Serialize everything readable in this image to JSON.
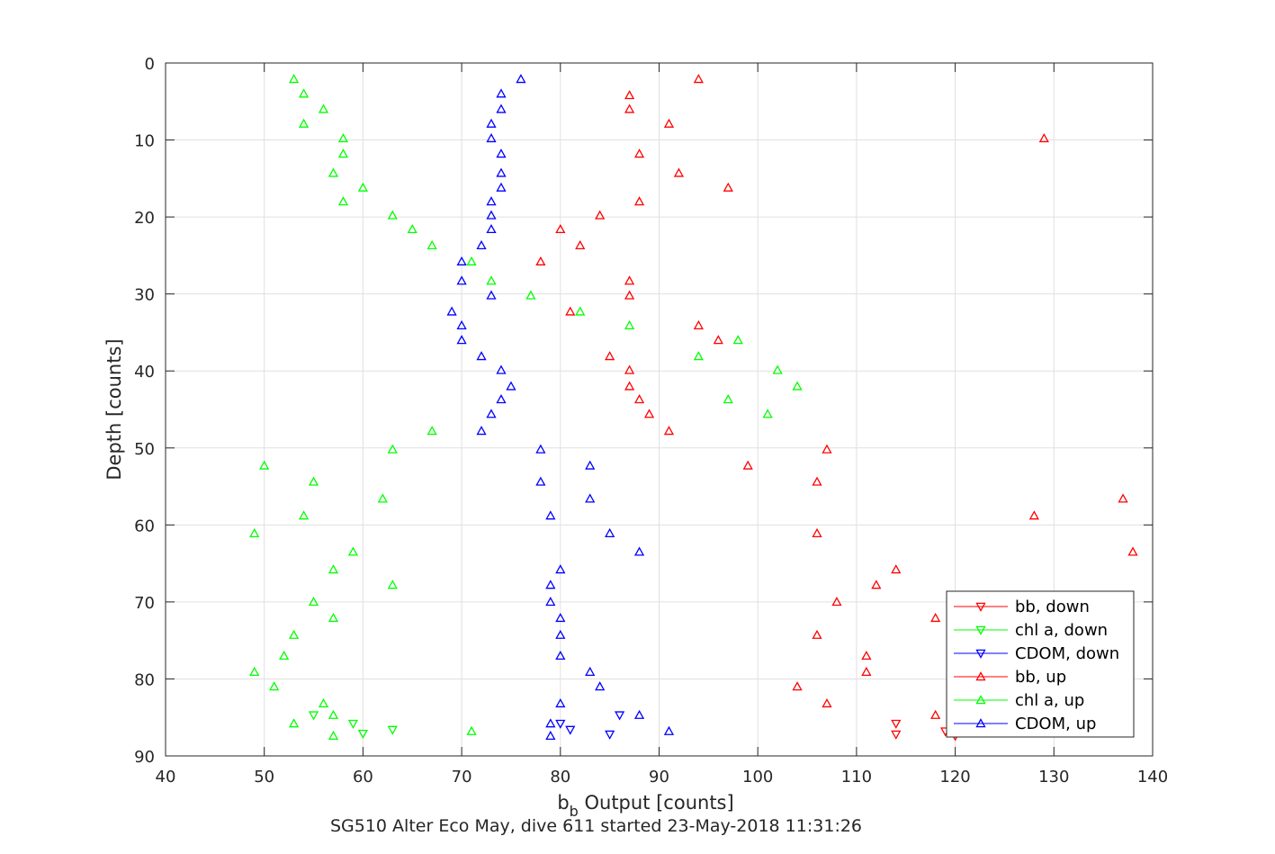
{
  "chart_data": {
    "type": "scatter",
    "xlabel_base": "b",
    "xlabel_sub": "b",
    "xlabel_rest": " Output [counts]",
    "ylabel": "Depth [counts]",
    "caption": "SG510 Alter Eco May, dive 611 started 23-May-2018 11:31:26",
    "xlim": [
      40,
      140
    ],
    "ylim": [
      0,
      90
    ],
    "y_reversed": true,
    "grid": true,
    "legend_position": "bottom-right",
    "x_ticks": [
      "40",
      "50",
      "60",
      "70",
      "80",
      "90",
      "100",
      "110",
      "120",
      "130",
      "140"
    ],
    "y_ticks": [
      "0",
      "10",
      "20",
      "30",
      "40",
      "50",
      "60",
      "70",
      "80",
      "90"
    ],
    "series": [
      {
        "name": "bb, down",
        "color": "#ff0000",
        "marker": "triangle-down",
        "points": [
          [
            114,
            85.8
          ],
          [
            114,
            87.2
          ],
          [
            119,
            86.8
          ],
          [
            120,
            87.4
          ]
        ]
      },
      {
        "name": "chl a, down",
        "color": "#00ff00",
        "marker": "triangle-down",
        "points": [
          [
            55,
            84.7
          ],
          [
            59,
            85.8
          ],
          [
            60,
            87.1
          ],
          [
            63,
            86.6
          ]
        ]
      },
      {
        "name": "CDOM, down",
        "color": "#0000ff",
        "marker": "triangle-down",
        "points": [
          [
            80,
            85.8
          ],
          [
            81,
            86.6
          ],
          [
            85,
            87.2
          ],
          [
            86,
            84.7
          ]
        ]
      },
      {
        "name": "bb, up",
        "color": "#ff0000",
        "marker": "triangle-up",
        "points": [
          [
            94,
            2.1
          ],
          [
            87,
            4.2
          ],
          [
            87,
            6.0
          ],
          [
            91,
            7.9
          ],
          [
            129,
            9.8
          ],
          [
            88,
            11.8
          ],
          [
            92,
            14.3
          ],
          [
            97,
            16.2
          ],
          [
            88,
            18.0
          ],
          [
            84,
            19.8
          ],
          [
            80,
            21.6
          ],
          [
            82,
            23.7
          ],
          [
            78,
            25.8
          ],
          [
            87,
            28.3
          ],
          [
            87,
            30.2
          ],
          [
            81,
            32.3
          ],
          [
            94,
            34.1
          ],
          [
            96,
            36.0
          ],
          [
            85,
            38.1
          ],
          [
            87,
            39.9
          ],
          [
            87,
            42.0
          ],
          [
            88,
            43.7
          ],
          [
            89,
            45.6
          ],
          [
            91,
            47.8
          ],
          [
            107,
            50.2
          ],
          [
            99,
            52.3
          ],
          [
            106,
            54.4
          ],
          [
            137,
            56.6
          ],
          [
            128,
            58.8
          ],
          [
            106,
            61.1
          ],
          [
            138,
            63.5
          ],
          [
            114,
            65.8
          ],
          [
            112,
            67.8
          ],
          [
            108,
            70.0
          ],
          [
            118,
            72.1
          ],
          [
            106,
            74.3
          ],
          [
            111,
            77.0
          ],
          [
            111,
            79.1
          ],
          [
            104,
            81.0
          ],
          [
            107,
            83.2
          ],
          [
            118,
            84.7
          ]
        ]
      },
      {
        "name": "chl a, up",
        "color": "#00ff00",
        "marker": "triangle-up",
        "points": [
          [
            53,
            2.1
          ],
          [
            54,
            4.0
          ],
          [
            56,
            6.0
          ],
          [
            54,
            7.9
          ],
          [
            58,
            9.8
          ],
          [
            58,
            11.8
          ],
          [
            57,
            14.3
          ],
          [
            60,
            16.2
          ],
          [
            58,
            18.0
          ],
          [
            63,
            19.8
          ],
          [
            65,
            21.6
          ],
          [
            67,
            23.7
          ],
          [
            71,
            25.8
          ],
          [
            73,
            28.3
          ],
          [
            77,
            30.2
          ],
          [
            82,
            32.3
          ],
          [
            87,
            34.1
          ],
          [
            98,
            36.0
          ],
          [
            94,
            38.1
          ],
          [
            102,
            39.9
          ],
          [
            104,
            42.0
          ],
          [
            97,
            43.7
          ],
          [
            101,
            45.6
          ],
          [
            67,
            47.8
          ],
          [
            63,
            50.2
          ],
          [
            50,
            52.3
          ],
          [
            55,
            54.4
          ],
          [
            62,
            56.6
          ],
          [
            54,
            58.8
          ],
          [
            49,
            61.1
          ],
          [
            59,
            63.5
          ],
          [
            57,
            65.8
          ],
          [
            63,
            67.8
          ],
          [
            55,
            70.0
          ],
          [
            57,
            72.1
          ],
          [
            53,
            74.3
          ],
          [
            52,
            77.0
          ],
          [
            49,
            79.1
          ],
          [
            51,
            81.0
          ],
          [
            56,
            83.2
          ],
          [
            57,
            84.7
          ],
          [
            53,
            85.8
          ],
          [
            71,
            86.8
          ],
          [
            57,
            87.4
          ]
        ]
      },
      {
        "name": "CDOM, up",
        "color": "#0000ff",
        "marker": "triangle-up",
        "points": [
          [
            76,
            2.1
          ],
          [
            74,
            4.0
          ],
          [
            74,
            6.0
          ],
          [
            73,
            7.9
          ],
          [
            73,
            9.8
          ],
          [
            74,
            11.8
          ],
          [
            74,
            14.3
          ],
          [
            74,
            16.2
          ],
          [
            73,
            18.0
          ],
          [
            73,
            19.8
          ],
          [
            73,
            21.6
          ],
          [
            72,
            23.7
          ],
          [
            70,
            25.8
          ],
          [
            70,
            28.3
          ],
          [
            73,
            30.2
          ],
          [
            69,
            32.3
          ],
          [
            70,
            34.1
          ],
          [
            70,
            36.0
          ],
          [
            72,
            38.1
          ],
          [
            74,
            39.9
          ],
          [
            75,
            42.0
          ],
          [
            74,
            43.7
          ],
          [
            73,
            45.6
          ],
          [
            72,
            47.8
          ],
          [
            78,
            50.2
          ],
          [
            83,
            52.3
          ],
          [
            78,
            54.4
          ],
          [
            83,
            56.6
          ],
          [
            79,
            58.8
          ],
          [
            85,
            61.1
          ],
          [
            88,
            63.5
          ],
          [
            80,
            65.8
          ],
          [
            79,
            67.8
          ],
          [
            79,
            70.0
          ],
          [
            80,
            72.1
          ],
          [
            80,
            74.3
          ],
          [
            80,
            77.0
          ],
          [
            83,
            79.1
          ],
          [
            84,
            81.0
          ],
          [
            80,
            83.2
          ],
          [
            88,
            84.7
          ],
          [
            79,
            85.8
          ],
          [
            91,
            86.8
          ],
          [
            79,
            87.4
          ]
        ]
      }
    ]
  }
}
